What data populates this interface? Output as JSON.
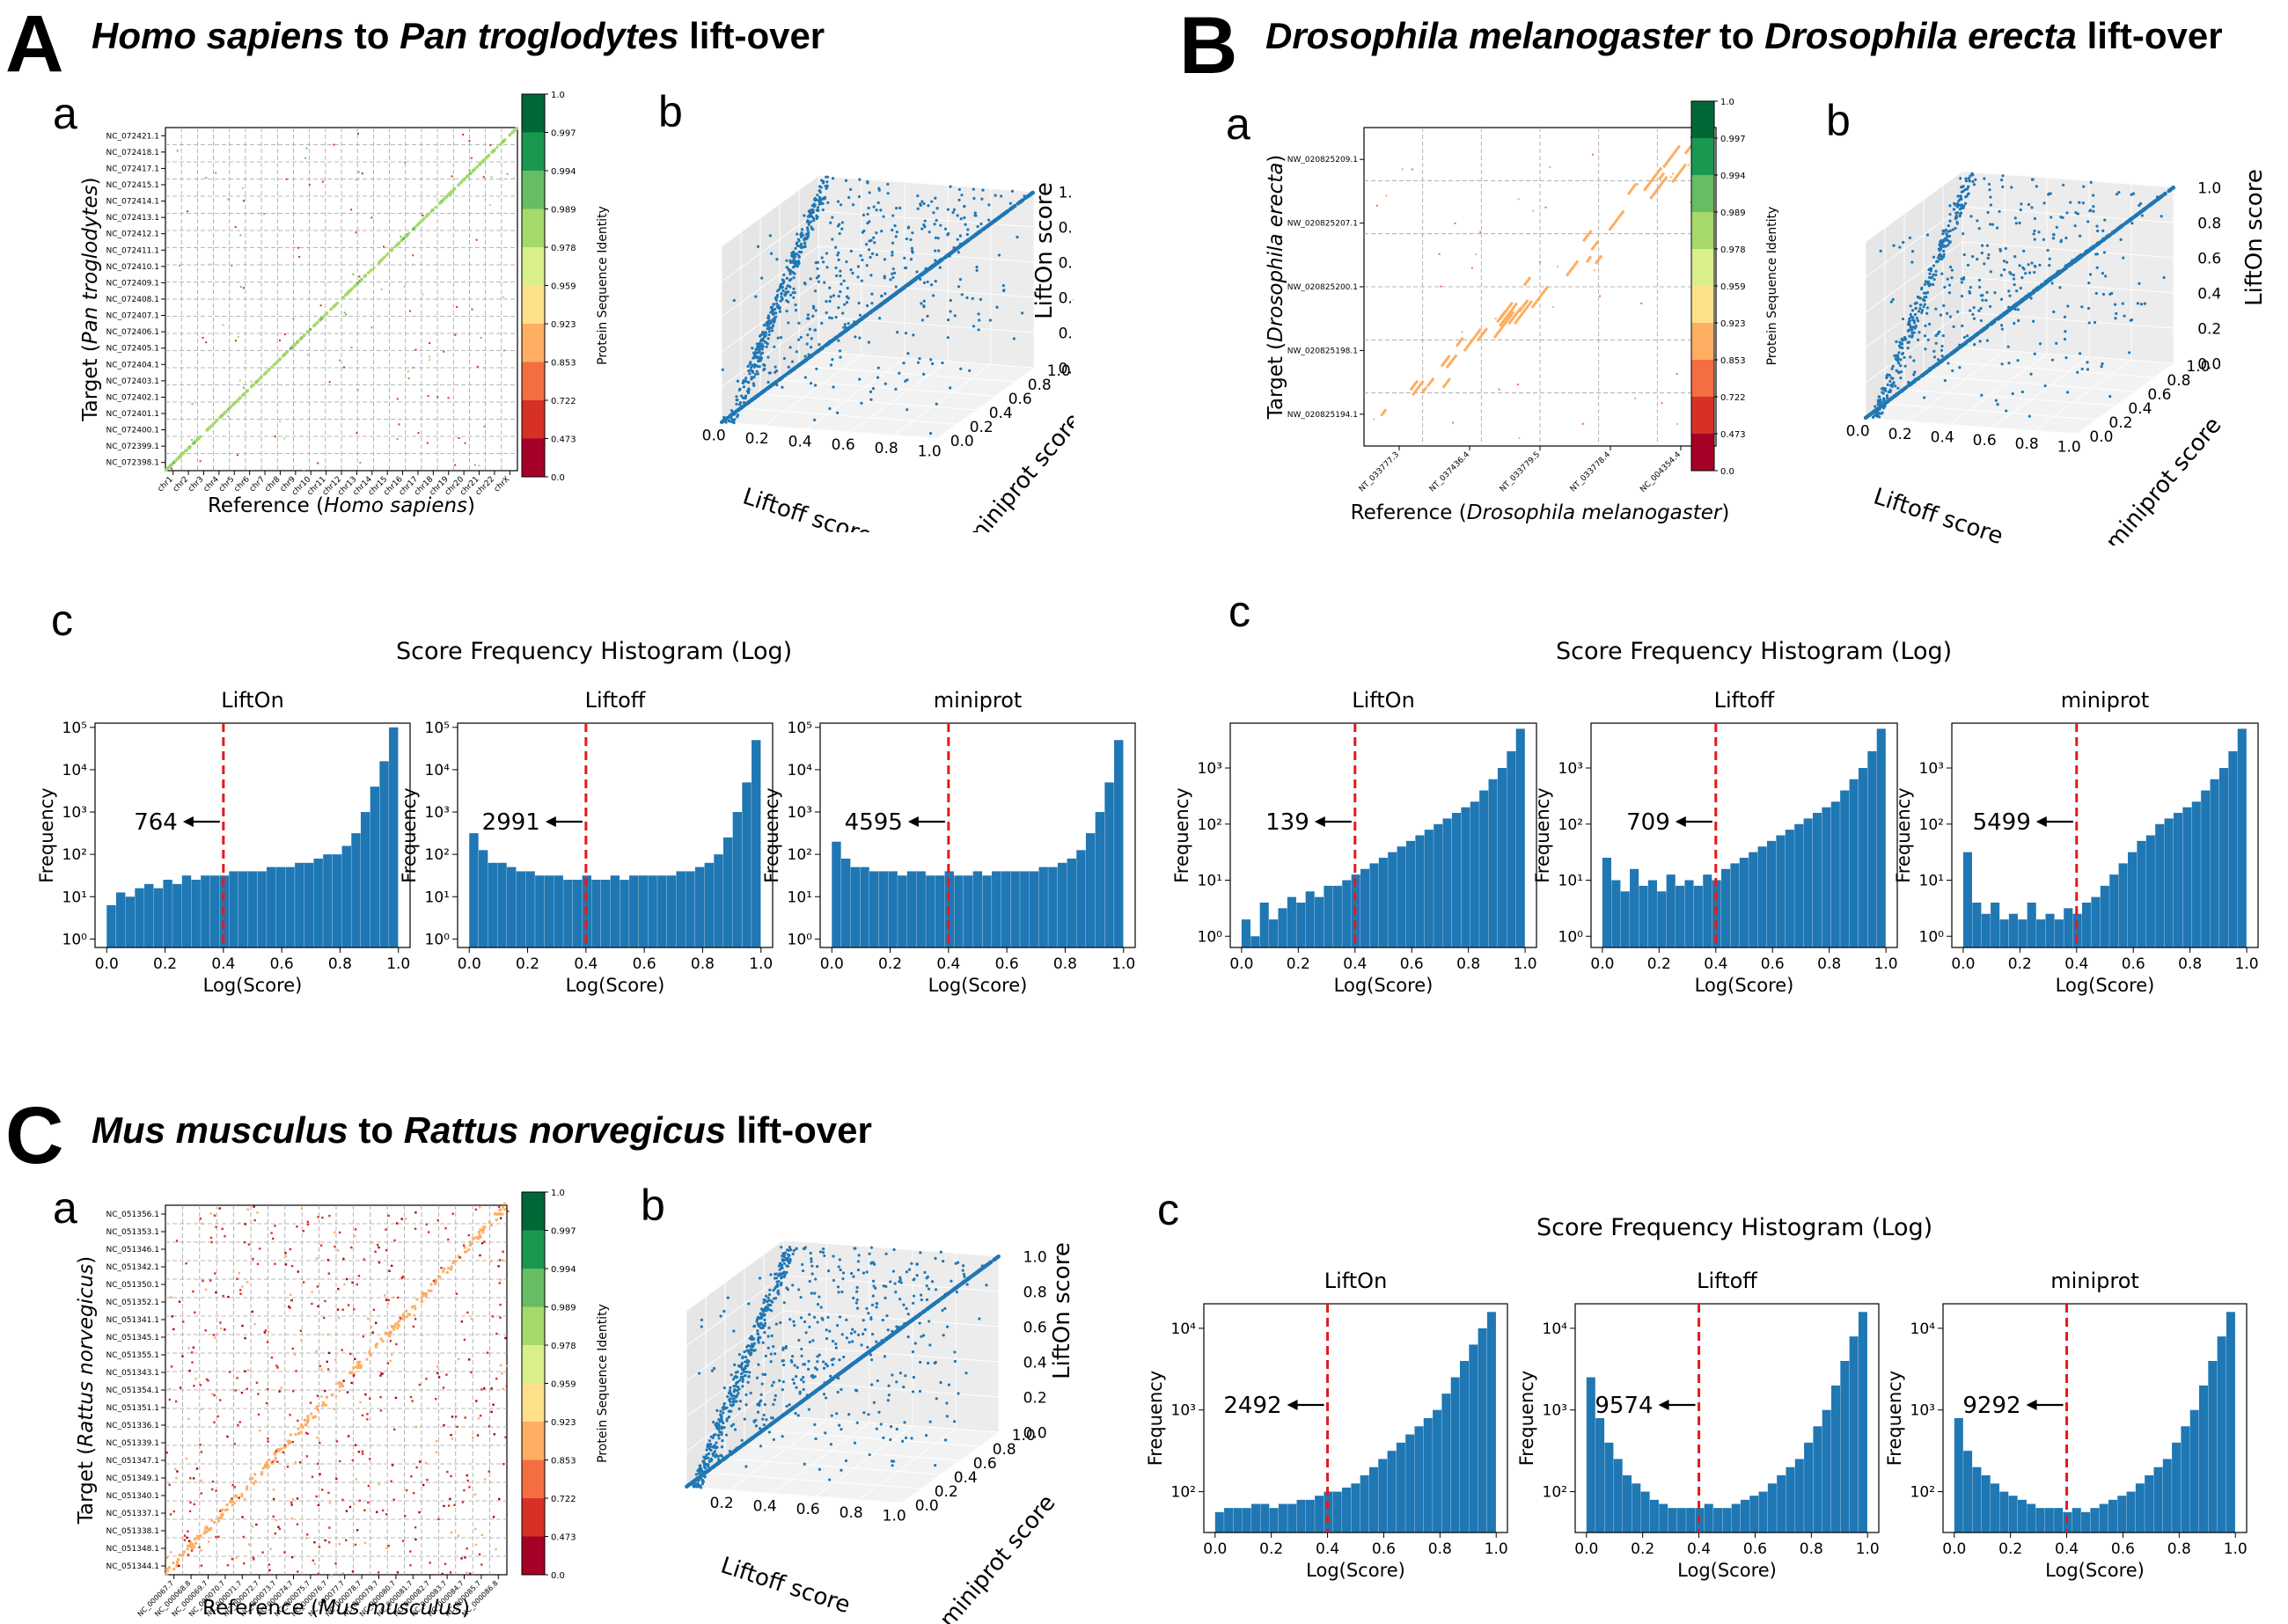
{
  "figure": {
    "panels": [
      {
        "id": "A",
        "letter": "A",
        "title": {
          "species1": "Homo sapiens",
          "connector": "to",
          "species2": "Pan troglodytes",
          "suffix": "lift-over"
        },
        "sub_a": "a",
        "sub_b": "b",
        "sub_c": "c",
        "hist_title": "Score Frequency Histogram (Log)"
      },
      {
        "id": "B",
        "letter": "B",
        "title": {
          "species1": "Drosophila melanogaster",
          "connector": "to",
          "species2": "Drosophila erecta",
          "suffix": "lift-over"
        },
        "sub_a": "a",
        "sub_b": "b",
        "sub_c": "c",
        "hist_title": "Score Frequency Histogram (Log)"
      },
      {
        "id": "C",
        "letter": "C",
        "title": {
          "species1": "Mus musculus",
          "connector": "to",
          "species2": "Rattus norvegicus",
          "suffix": "lift-over"
        },
        "sub_a": "a",
        "sub_b": "b",
        "sub_c": "c",
        "hist_title": "Score Frequency Histogram (Log)"
      }
    ]
  },
  "chart_data": [
    {
      "id": "A-a",
      "type": "scatter",
      "subtype": "dotplot",
      "xlabel": {
        "prefix": "Reference (",
        "species": "Homo sapiens",
        "suffix": ")"
      },
      "ylabel": {
        "prefix": "Target (",
        "species": "Pan troglodytes",
        "suffix": ")"
      },
      "xticks": [
        "chr1",
        "chr2",
        "chr3",
        "chr4",
        "chr5",
        "chr6",
        "chr7",
        "chr8",
        "chr9",
        "chr10",
        "chr11",
        "chr12",
        "chr13",
        "chr14",
        "chr15",
        "chr16",
        "chr17",
        "chr18",
        "chr19",
        "chr20",
        "chr21",
        "chr22",
        "chrX"
      ],
      "yticks": [
        "NC_072421.1",
        "NC_072418.1",
        "NC_072417.1",
        "NC_072415.1",
        "NC_072414.1",
        "NC_072413.1",
        "NC_072412.1",
        "NC_072411.1",
        "NC_072410.1",
        "NC_072409.1",
        "NC_072408.1",
        "NC_072407.1",
        "NC_072406.1",
        "NC_072405.1",
        "NC_072404.1",
        "NC_072403.1",
        "NC_072402.1",
        "NC_072401.1",
        "NC_072400.1",
        "NC_072399.1",
        "NC_072398.1"
      ],
      "colorbar": {
        "label": "Protein Sequence Identity",
        "ticks": [
          "1.0",
          "0.997",
          "0.994",
          "0.989",
          "0.978",
          "0.959",
          "0.923",
          "0.853",
          "0.722",
          "0.473",
          "0.0"
        ]
      },
      "dominant_identity": "0.978-0.989",
      "grid": true
    },
    {
      "id": "A-b",
      "type": "scatter",
      "subtype": "3d",
      "xlabel": "Liftoff score",
      "ylabel": "miniprot score",
      "zlabel": "LiftOn score",
      "xticks": [
        "0.0",
        "0.2",
        "0.4",
        "0.6",
        "0.8",
        "1.0"
      ],
      "yticks": [
        "0.0",
        "0.2",
        "0.4",
        "0.6",
        "0.8",
        "1.0"
      ],
      "zticks": [
        "0.0",
        "0.2",
        "0.4",
        "0.6",
        "0.8",
        "1.0"
      ],
      "xlim": [
        0,
        1
      ],
      "ylim": [
        0,
        1
      ],
      "zlim": [
        0,
        1
      ],
      "color": "#1f77b4"
    },
    {
      "id": "A-c",
      "type": "bar",
      "subtype": "histogram-log",
      "histograms": [
        {
          "name": "LiftOn",
          "count_below_threshold": 764,
          "counts": [
            0.8,
            1.1,
            1.0,
            1.2,
            1.3,
            1.2,
            1.4,
            1.3,
            1.5,
            1.4,
            1.5,
            1.5,
            1.5,
            1.6,
            1.6,
            1.6,
            1.6,
            1.7,
            1.7,
            1.7,
            1.8,
            1.8,
            1.9,
            2.0,
            2.0,
            2.2,
            2.5,
            3.0,
            3.6,
            4.2,
            5.0
          ]
        },
        {
          "name": "Liftoff",
          "count_below_threshold": 2991,
          "counts": [
            2.5,
            2.1,
            1.8,
            1.8,
            1.7,
            1.6,
            1.6,
            1.5,
            1.5,
            1.5,
            1.4,
            1.4,
            1.5,
            1.4,
            1.4,
            1.5,
            1.4,
            1.5,
            1.5,
            1.5,
            1.5,
            1.5,
            1.6,
            1.6,
            1.7,
            1.8,
            2.0,
            2.4,
            3.0,
            3.7,
            4.7
          ]
        },
        {
          "name": "miniprot",
          "count_below_threshold": 4595,
          "counts": [
            2.3,
            1.9,
            1.7,
            1.7,
            1.6,
            1.6,
            1.6,
            1.5,
            1.6,
            1.6,
            1.5,
            1.5,
            1.6,
            1.5,
            1.5,
            1.6,
            1.5,
            1.6,
            1.6,
            1.6,
            1.6,
            1.6,
            1.7,
            1.7,
            1.8,
            1.9,
            2.1,
            2.5,
            3.0,
            3.7,
            4.7
          ]
        }
      ],
      "threshold": 0.4,
      "xlabel": "Log(Score)",
      "ylabel": "Frequency",
      "xticks": [
        "0.0",
        "0.2",
        "0.4",
        "0.6",
        "0.8",
        "1.0"
      ],
      "yticks": [
        "10⁰",
        "10¹",
        "10²",
        "10³",
        "10⁴",
        "10⁵"
      ],
      "ylim_log": [
        -0.2,
        5.1
      ]
    },
    {
      "id": "B-a",
      "type": "scatter",
      "subtype": "dotplot",
      "xlabel": {
        "prefix": "Reference (",
        "species": "Drosophila melanogaster",
        "suffix": ")"
      },
      "ylabel": {
        "prefix": "Target (",
        "species": "Drosophila erecta",
        "suffix": ")"
      },
      "xticks": [
        "NT_033777.3",
        "NT_037436.4",
        "NT_033779.5",
        "NT_033778.4",
        "NC_004354.4"
      ],
      "yticks": [
        "NW_020825209.1",
        "NW_020825207.1",
        "NW_020825200.1",
        "NW_020825198.1",
        "NW_020825194.1"
      ],
      "colorbar": {
        "label": "Protein Sequence Identity",
        "ticks": [
          "1.0",
          "0.997",
          "0.994",
          "0.989",
          "0.978",
          "0.959",
          "0.923",
          "0.853",
          "0.722",
          "0.473",
          "0.0"
        ]
      },
      "dominant_identity": "0.853-0.923",
      "grid": true
    },
    {
      "id": "B-b",
      "type": "scatter",
      "subtype": "3d",
      "xlabel": "Liftoff score",
      "ylabel": "miniprot score",
      "zlabel": "LiftOn score",
      "xticks": [
        "0.0",
        "0.2",
        "0.4",
        "0.6",
        "0.8",
        "1.0"
      ],
      "yticks": [
        "0.0",
        "0.2",
        "0.4",
        "0.6",
        "0.8",
        "1.0"
      ],
      "zticks": [
        "0.0",
        "0.2",
        "0.4",
        "0.6",
        "0.8",
        "1.0"
      ],
      "xlim": [
        0,
        1
      ],
      "ylim": [
        0,
        1
      ],
      "zlim": [
        0,
        1
      ],
      "color": "#1f77b4"
    },
    {
      "id": "B-c",
      "type": "bar",
      "subtype": "histogram-log",
      "histograms": [
        {
          "name": "LiftOn",
          "count_below_threshold": 139,
          "counts": [
            0.3,
            0.0,
            0.6,
            0.3,
            0.5,
            0.7,
            0.6,
            0.8,
            0.7,
            0.9,
            0.9,
            1.0,
            1.1,
            1.2,
            1.3,
            1.4,
            1.5,
            1.6,
            1.7,
            1.8,
            1.9,
            2.0,
            2.1,
            2.2,
            2.3,
            2.4,
            2.6,
            2.8,
            3.0,
            3.3,
            3.7
          ]
        },
        {
          "name": "Liftoff",
          "count_below_threshold": 709,
          "counts": [
            1.4,
            1.0,
            0.8,
            1.2,
            0.9,
            1.0,
            0.8,
            1.1,
            0.9,
            1.0,
            0.9,
            1.1,
            1.0,
            1.2,
            1.3,
            1.4,
            1.5,
            1.6,
            1.7,
            1.8,
            1.9,
            2.0,
            2.1,
            2.2,
            2.3,
            2.4,
            2.6,
            2.8,
            3.0,
            3.3,
            3.7
          ]
        },
        {
          "name": "miniprot",
          "count_below_threshold": 5499,
          "counts": [
            1.5,
            0.6,
            0.4,
            0.6,
            0.3,
            0.4,
            0.3,
            0.6,
            0.3,
            0.4,
            0.3,
            0.5,
            0.4,
            0.6,
            0.7,
            0.9,
            1.1,
            1.3,
            1.5,
            1.7,
            1.8,
            2.0,
            2.1,
            2.2,
            2.3,
            2.4,
            2.6,
            2.8,
            3.0,
            3.3,
            3.7
          ]
        }
      ],
      "threshold": 0.4,
      "xlabel": "Log(Score)",
      "ylabel": "Frequency",
      "xticks": [
        "0.0",
        "0.2",
        "0.4",
        "0.6",
        "0.8",
        "1.0"
      ],
      "yticks": [
        "10⁰",
        "10¹",
        "10²",
        "10³"
      ],
      "ylim_log": [
        -0.2,
        3.8
      ]
    },
    {
      "id": "C-a",
      "type": "scatter",
      "subtype": "dotplot",
      "xlabel": {
        "prefix": "Reference (",
        "species": "Mus musculus",
        "suffix": ")"
      },
      "ylabel": {
        "prefix": "Target (",
        "species": "Rattus norvegicus",
        "suffix": ")"
      },
      "xticks": [
        "NC_000067.7",
        "NC_000068.8",
        "NC_000069.7",
        "NC_000070.7",
        "NC_000071.7",
        "NC_000072.7",
        "NC_000073.7",
        "NC_000074.7",
        "NC_000075.7",
        "NC_000076.7",
        "NC_000077.7",
        "NC_000078.7",
        "NC_000079.7",
        "NC_000080.7",
        "NC_000081.7",
        "NC_000082.7",
        "NC_000083.7",
        "NC_000084.7",
        "NC_000085.7",
        "NC_000086.8"
      ],
      "yticks": [
        "NC_051356.1",
        "NC_051353.1",
        "NC_051346.1",
        "NC_051342.1",
        "NC_051350.1",
        "NC_051352.1",
        "NC_051341.1",
        "NC_051345.1",
        "NC_051355.1",
        "NC_051343.1",
        "NC_051354.1",
        "NC_051351.1",
        "NC_051336.1",
        "NC_051339.1",
        "NC_051347.1",
        "NC_051349.1",
        "NC_051340.1",
        "NC_051337.1",
        "NC_051338.1",
        "NC_051348.1",
        "NC_051344.1"
      ],
      "colorbar": {
        "label": "Protein Sequence Identity",
        "ticks": [
          "1.0",
          "0.997",
          "0.994",
          "0.989",
          "0.978",
          "0.959",
          "0.923",
          "0.853",
          "0.722",
          "0.473",
          "0.0"
        ]
      },
      "dominant_identity": "0.853-0.923",
      "grid": true
    },
    {
      "id": "C-b",
      "type": "scatter",
      "subtype": "3d",
      "xlabel": "Liftoff score",
      "ylabel": "miniprot score",
      "zlabel": "LiftOn score",
      "xticks": [
        "0.2",
        "0.4",
        "0.6",
        "0.8",
        "1.0"
      ],
      "yticks": [
        "0.0",
        "0.2",
        "0.4",
        "0.6",
        "0.8",
        "1.0"
      ],
      "zticks": [
        "0.0",
        "0.2",
        "0.4",
        "0.6",
        "0.8",
        "1.0"
      ],
      "xlim": [
        0,
        1
      ],
      "ylim": [
        0,
        1
      ],
      "zlim": [
        0,
        1
      ],
      "color": "#1f77b4"
    },
    {
      "id": "C-c",
      "type": "bar",
      "subtype": "histogram-log",
      "histograms": [
        {
          "name": "LiftOn",
          "count_below_threshold": 2492,
          "counts": [
            1.75,
            1.8,
            1.8,
            1.8,
            1.85,
            1.85,
            1.8,
            1.85,
            1.85,
            1.9,
            1.9,
            1.95,
            2.0,
            2.0,
            2.05,
            2.1,
            2.2,
            2.3,
            2.4,
            2.5,
            2.6,
            2.7,
            2.8,
            2.9,
            3.0,
            3.2,
            3.4,
            3.6,
            3.8,
            4.0,
            4.2
          ]
        },
        {
          "name": "Liftoff",
          "count_below_threshold": 9574,
          "counts": [
            3.4,
            2.9,
            2.6,
            2.4,
            2.2,
            2.1,
            2.0,
            1.9,
            1.85,
            1.8,
            1.8,
            1.8,
            1.8,
            1.85,
            1.8,
            1.8,
            1.85,
            1.9,
            1.95,
            2.0,
            2.1,
            2.2,
            2.3,
            2.4,
            2.6,
            2.8,
            3.0,
            3.3,
            3.6,
            3.9,
            4.2
          ]
        },
        {
          "name": "miniprot",
          "count_below_threshold": 9292,
          "counts": [
            2.9,
            2.5,
            2.3,
            2.2,
            2.1,
            2.0,
            1.95,
            1.9,
            1.85,
            1.8,
            1.8,
            1.8,
            1.75,
            1.8,
            1.75,
            1.8,
            1.85,
            1.9,
            1.95,
            2.0,
            2.1,
            2.2,
            2.3,
            2.4,
            2.6,
            2.8,
            3.0,
            3.3,
            3.6,
            3.9,
            4.2
          ]
        }
      ],
      "threshold": 0.4,
      "xlabel": "Log(Score)",
      "ylabel": "Frequency",
      "xticks": [
        "0.0",
        "0.2",
        "0.4",
        "0.6",
        "0.8",
        "1.0"
      ],
      "yticks": [
        "10²",
        "10³",
        "10⁴"
      ],
      "ylim_log": [
        1.5,
        4.3
      ]
    }
  ]
}
